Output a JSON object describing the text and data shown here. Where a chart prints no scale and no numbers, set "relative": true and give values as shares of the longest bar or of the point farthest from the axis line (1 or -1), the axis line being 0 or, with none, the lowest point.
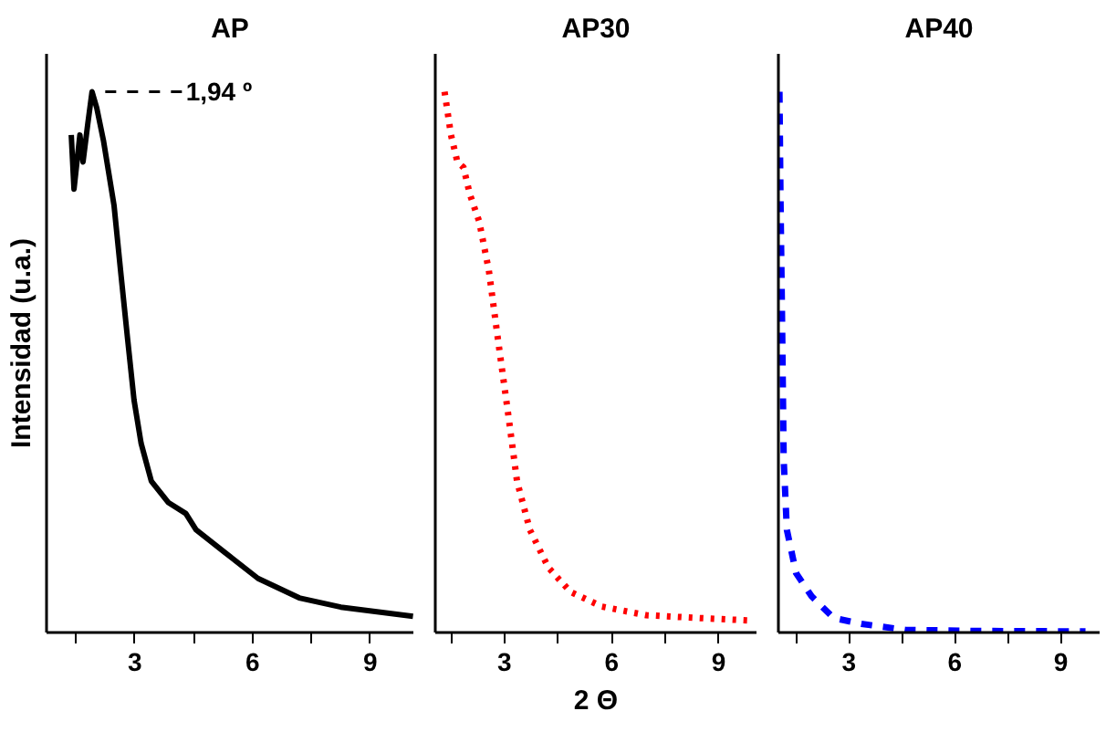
{
  "chart_data": [
    {
      "type": "line",
      "title": "AP",
      "ylabel": "Intensidad (u.a.)",
      "relative": true,
      "tick_labels": "x",
      "line_style": "solid",
      "xlim": [
        0.75,
        10.1
      ],
      "xticks": [
        {
          "value": 1.5,
          "label": null
        },
        3,
        {
          "value": 4.5,
          "label": null
        },
        6,
        {
          "value": 7.5,
          "label": null
        },
        9
      ],
      "x": [
        1.38,
        1.45,
        1.6,
        1.68,
        1.8,
        1.91,
        2.03,
        2.2,
        2.47,
        2.65,
        2.82,
        2.98,
        3.16,
        3.42,
        3.86,
        4.3,
        4.56,
        5.26,
        6.14,
        7.19,
        8.25,
        10.09
      ],
      "series": [
        {
          "color": "#000000",
          "values": [
            0.92,
            0.82,
            0.92,
            0.87,
            0.94,
            1.0,
            0.97,
            0.91,
            0.79,
            0.66,
            0.54,
            0.43,
            0.35,
            0.28,
            0.24,
            0.22,
            0.19,
            0.15,
            0.1,
            0.064,
            0.047,
            0.03
          ]
        }
      ],
      "annotations": [
        "1,94 º"
      ]
    },
    {
      "type": "line",
      "title": "AP30",
      "xlabel": "2 Θ",
      "relative": true,
      "tick_labels": "x",
      "line_style": "dotted",
      "xlim": [
        1.06,
        10.06
      ],
      "xticks": [
        {
          "value": 1.5,
          "label": null
        },
        3,
        {
          "value": 4.5,
          "label": null
        },
        6,
        {
          "value": 7.5,
          "label": null
        },
        9
      ],
      "x": [
        1.32,
        1.5,
        1.68,
        1.85,
        2.03,
        2.29,
        2.56,
        2.82,
        3.09,
        3.35,
        3.71,
        4.23,
        4.85,
        5.73,
        6.97,
        8.38,
        9.97
      ],
      "series": [
        {
          "color": "#ff0000",
          "values": [
            1.0,
            0.92,
            0.87,
            0.86,
            0.81,
            0.76,
            0.67,
            0.54,
            0.41,
            0.28,
            0.19,
            0.12,
            0.075,
            0.048,
            0.032,
            0.027,
            0.022
          ]
        }
      ]
    },
    {
      "type": "line",
      "title": "AP40",
      "relative": true,
      "tick_labels": "x",
      "line_style": "dashed",
      "xlim": [
        1.0,
        10.1
      ],
      "xticks": [
        {
          "value": 1.5,
          "label": null
        },
        3,
        {
          "value": 4.5,
          "label": null
        },
        6,
        {
          "value": 7.5,
          "label": null
        },
        9
      ],
      "x": [
        1.03,
        1.06,
        1.1,
        1.15,
        1.24,
        1.5,
        1.94,
        2.56,
        3.35,
        4.59,
        6.5,
        9.7
      ],
      "series": [
        {
          "color": "#0000ff",
          "values": [
            1.0,
            0.8,
            0.6,
            0.32,
            0.19,
            0.11,
            0.067,
            0.027,
            0.016,
            0.005,
            0.003,
            0.002
          ]
        }
      ]
    }
  ]
}
